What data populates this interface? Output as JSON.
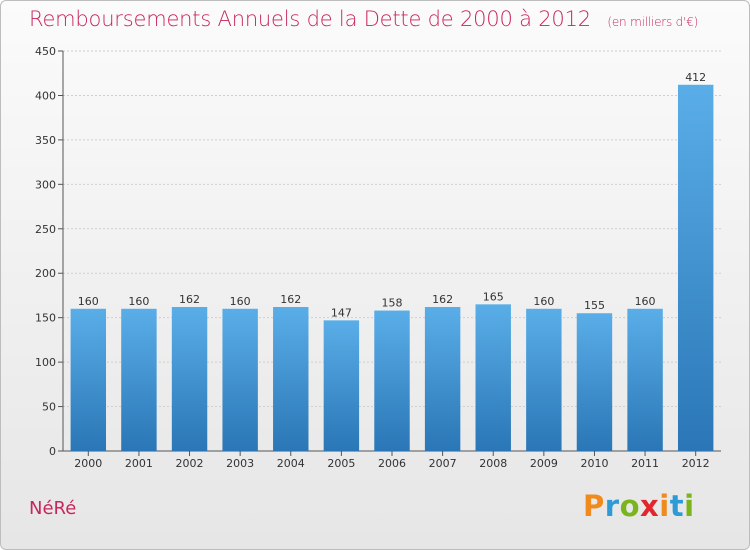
{
  "header": {
    "title": "Remboursements Annuels de la Dette de 2000 à 2012",
    "subtitle": "(en milliers d'€)"
  },
  "footer": {
    "place": "NéRé",
    "brand_letters": [
      "P",
      "r",
      "o",
      "x",
      "i",
      "t",
      "i"
    ]
  },
  "chart_data": {
    "type": "bar",
    "title": "Remboursements Annuels de la Dette de 2000 à 2012",
    "subtitle": "(en milliers d'€)",
    "categories": [
      "2000",
      "2001",
      "2002",
      "2003",
      "2004",
      "2005",
      "2006",
      "2007",
      "2008",
      "2009",
      "2010",
      "2011",
      "2012"
    ],
    "values": [
      160,
      160,
      162,
      160,
      162,
      147,
      158,
      162,
      165,
      160,
      155,
      160,
      412
    ],
    "ylim": [
      0,
      450
    ],
    "yticks": [
      0,
      50,
      100,
      150,
      200,
      250,
      300,
      350,
      400,
      450
    ],
    "grid": true,
    "bar_color": "#3d8fd0",
    "bar_color_light": "#5aaee8",
    "title_color": "#c8265d"
  }
}
